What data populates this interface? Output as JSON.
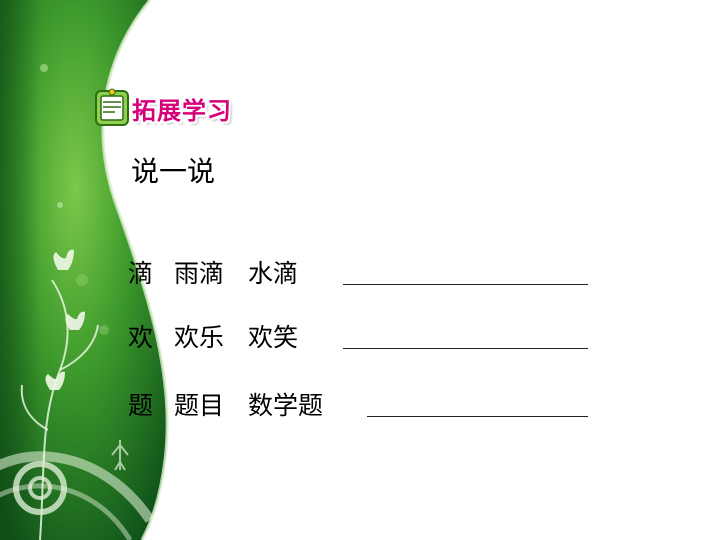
{
  "badge": {
    "label": "拓展学习",
    "icon": "book-icon"
  },
  "section": {
    "title": "说一说"
  },
  "rows": [
    {
      "words": [
        "滴",
        "雨滴",
        "水滴"
      ]
    },
    {
      "words": [
        "欢",
        "欢乐",
        "欢笑"
      ]
    },
    {
      "words": [
        "题",
        "题目",
        "数学题"
      ]
    }
  ],
  "colors": {
    "green_dark": "#1e6b1e",
    "green_light": "#6dbb3f",
    "badge_pink": "#d6007a"
  }
}
